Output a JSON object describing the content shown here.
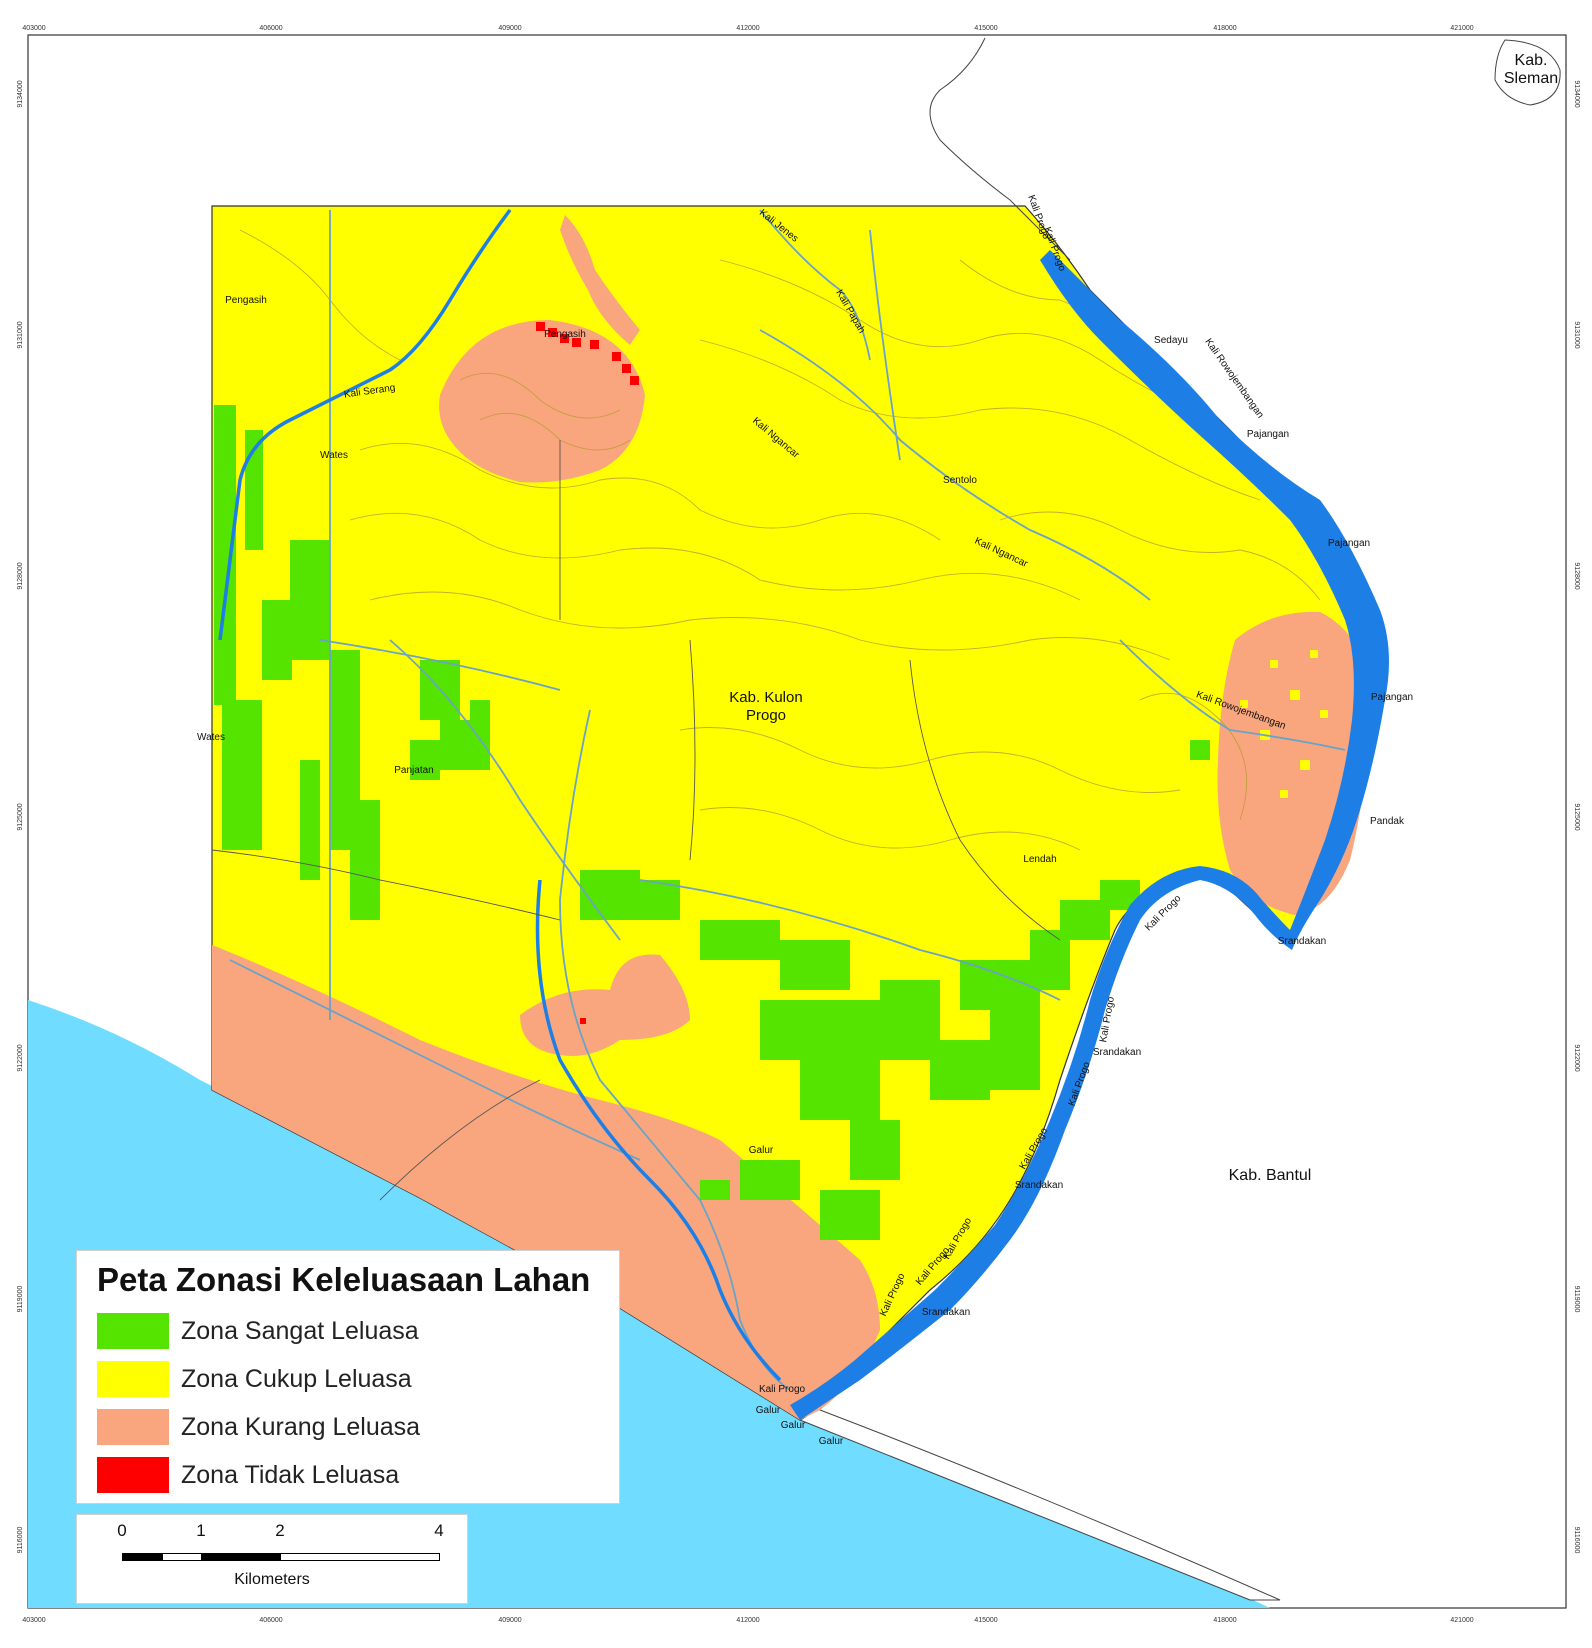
{
  "map": {
    "frame_labels": {
      "top": [
        "403000",
        "406000",
        "409000",
        "412000",
        "415000",
        "418000",
        "421000"
      ],
      "bottom": [
        "403000",
        "406000",
        "409000",
        "412000",
        "415000",
        "418000",
        "421000"
      ],
      "left": [
        "9134000",
        "9131000",
        "9128000",
        "9125000",
        "9122000",
        "9119000",
        "9116000"
      ],
      "right": [
        "9134000",
        "9131000",
        "9128000",
        "9125000",
        "9122000",
        "9119000",
        "9116000"
      ]
    },
    "place_labels": {
      "kab_sleman": "Kab.\nSleman",
      "kab_kulon_progo": "Kab. Kulon\nProgo",
      "kab_bantul": "Kab. Bantul",
      "pengasih_1": "Pengasih",
      "pengasih_2": "Pengasih",
      "wates_1": "Wates",
      "wates_2": "Wates",
      "panjatan": "Panjatan",
      "sentolo": "Sentolo",
      "lendah": "Lendah",
      "galur_1": "Galur",
      "galur_2": "Galur",
      "galur_3": "Galur",
      "galur_4": "Galur",
      "sedayu": "Sedayu",
      "pajangan_1": "Pajangan",
      "pajangan_2": "Pajangan",
      "pajangan_3": "Pajangan",
      "pandak": "Pandak",
      "srandakan_1": "Srandakan",
      "srandakan_2": "Srandakan",
      "srandakan_3": "Srandakan",
      "srandakan_4": "Srandakan"
    },
    "river_labels": {
      "kali_serang": "Kali Serang",
      "kali_jenes": "Kali Jenes",
      "kali_papah": "Kali Papah",
      "kali_ngancar_1": "Kali Ngancar",
      "kali_ngancar_2": "Kali Ngancar",
      "kali_rowojembangan_1": "Kali Rowojembangan",
      "kali_rowojembangan_2": "Kali Rowojembangan",
      "kali_progo_1": "Kali Progo",
      "kali_progo_2": "Kali Progo",
      "kali_progo_3": "Kali Progo",
      "kali_progo_4": "Kali Progo",
      "kali_progo_5": "Kali Progo",
      "kali_progo_6": "Kali Progo",
      "kali_progo_7": "Kali Progo",
      "kali_progo_8": "Kali Progo",
      "kali_progo_9": "Kali Progo",
      "kali_progo_10": "Kali Progo"
    }
  },
  "legend": {
    "title": "Peta Zonasi Keleluasaan Lahan",
    "items": [
      {
        "label": "Zona Sangat Leluasa",
        "color": "#55e300"
      },
      {
        "label": "Zona Cukup Leluasa",
        "color": "#ffff00"
      },
      {
        "label": "Zona Kurang Leluasa",
        "color": "#f9a67e"
      },
      {
        "label": "Zona Tidak Leluasa",
        "color": "#ff0000"
      }
    ]
  },
  "scale_bar": {
    "ticks": [
      "0",
      "1",
      "2",
      "4"
    ],
    "unit": "Kilometers"
  },
  "colors": {
    "sea": "#70dcff",
    "river": "#1d7fe6",
    "canal": "#6aa3c8",
    "contour": "#b99a35",
    "boundary": "#333333"
  }
}
